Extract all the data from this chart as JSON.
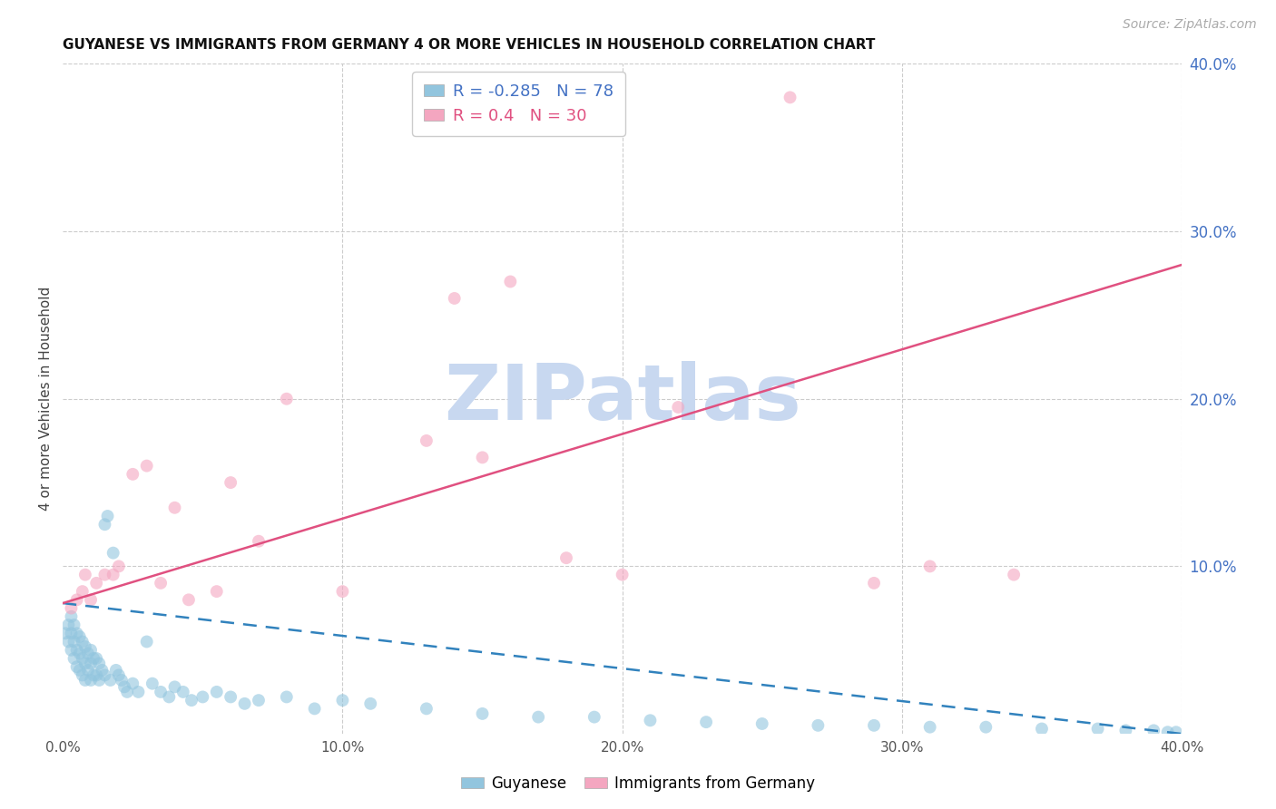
{
  "title": "GUYANESE VS IMMIGRANTS FROM GERMANY 4 OR MORE VEHICLES IN HOUSEHOLD CORRELATION CHART",
  "source": "Source: ZipAtlas.com",
  "ylabel": "4 or more Vehicles in Household",
  "xlim": [
    0.0,
    0.4
  ],
  "ylim": [
    0.0,
    0.4
  ],
  "xticks": [
    0.0,
    0.1,
    0.2,
    0.3,
    0.4
  ],
  "yticks_right": [
    0.1,
    0.2,
    0.3,
    0.4
  ],
  "watermark": "ZIPatlas",
  "watermark_color": "#c8d8f0",
  "background_color": "#ffffff",
  "grid_color": "#cccccc",
  "guyanese": {
    "name": "Guyanese",
    "R": -0.285,
    "N": 78,
    "color": "#92c5de",
    "line_color": "#3182bd",
    "x": [
      0.001,
      0.002,
      0.002,
      0.003,
      0.003,
      0.003,
      0.004,
      0.004,
      0.004,
      0.005,
      0.005,
      0.005,
      0.006,
      0.006,
      0.006,
      0.007,
      0.007,
      0.007,
      0.008,
      0.008,
      0.008,
      0.009,
      0.009,
      0.01,
      0.01,
      0.01,
      0.011,
      0.011,
      0.012,
      0.012,
      0.013,
      0.013,
      0.014,
      0.015,
      0.015,
      0.016,
      0.017,
      0.018,
      0.019,
      0.02,
      0.021,
      0.022,
      0.023,
      0.025,
      0.027,
      0.03,
      0.032,
      0.035,
      0.038,
      0.04,
      0.043,
      0.046,
      0.05,
      0.055,
      0.06,
      0.065,
      0.07,
      0.08,
      0.09,
      0.1,
      0.11,
      0.13,
      0.15,
      0.17,
      0.19,
      0.21,
      0.23,
      0.25,
      0.27,
      0.29,
      0.31,
      0.33,
      0.35,
      0.37,
      0.38,
      0.39,
      0.395,
      0.398
    ],
    "y": [
      0.06,
      0.065,
      0.055,
      0.07,
      0.06,
      0.05,
      0.065,
      0.055,
      0.045,
      0.06,
      0.05,
      0.04,
      0.058,
      0.048,
      0.038,
      0.055,
      0.045,
      0.035,
      0.052,
      0.042,
      0.032,
      0.048,
      0.038,
      0.05,
      0.042,
      0.032,
      0.045,
      0.035,
      0.045,
      0.035,
      0.042,
      0.032,
      0.038,
      0.125,
      0.035,
      0.13,
      0.032,
      0.108,
      0.038,
      0.035,
      0.032,
      0.028,
      0.025,
      0.03,
      0.025,
      0.055,
      0.03,
      0.025,
      0.022,
      0.028,
      0.025,
      0.02,
      0.022,
      0.025,
      0.022,
      0.018,
      0.02,
      0.022,
      0.015,
      0.02,
      0.018,
      0.015,
      0.012,
      0.01,
      0.01,
      0.008,
      0.007,
      0.006,
      0.005,
      0.005,
      0.004,
      0.004,
      0.003,
      0.003,
      0.002,
      0.002,
      0.001,
      0.001
    ]
  },
  "germany": {
    "name": "Immigrants from Germany",
    "R": 0.4,
    "N": 30,
    "color": "#f4a6c0",
    "line_color": "#e05080",
    "x": [
      0.003,
      0.005,
      0.007,
      0.008,
      0.01,
      0.012,
      0.015,
      0.018,
      0.02,
      0.025,
      0.03,
      0.035,
      0.04,
      0.045,
      0.055,
      0.06,
      0.07,
      0.08,
      0.1,
      0.13,
      0.14,
      0.15,
      0.16,
      0.18,
      0.2,
      0.22,
      0.26,
      0.29,
      0.31,
      0.34
    ],
    "y": [
      0.075,
      0.08,
      0.085,
      0.095,
      0.08,
      0.09,
      0.095,
      0.095,
      0.1,
      0.155,
      0.16,
      0.09,
      0.135,
      0.08,
      0.085,
      0.15,
      0.115,
      0.2,
      0.085,
      0.175,
      0.26,
      0.165,
      0.27,
      0.105,
      0.095,
      0.195,
      0.38,
      0.09,
      0.1,
      0.095
    ]
  },
  "title_fontsize": 11,
  "axis_label_fontsize": 11,
  "tick_fontsize": 11,
  "source_fontsize": 10,
  "watermark_fontsize": 62
}
